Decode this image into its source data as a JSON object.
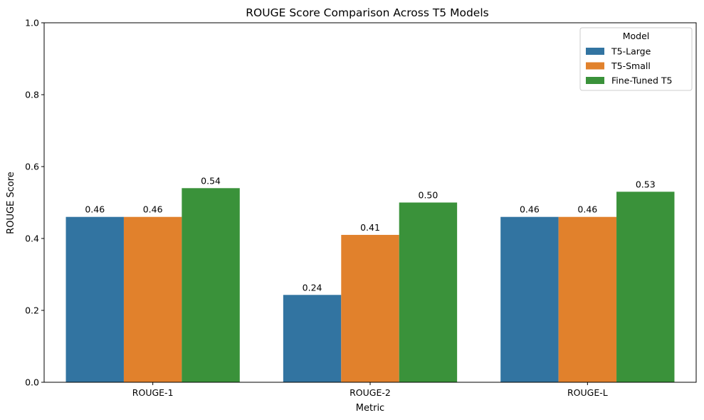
{
  "chart_data": {
    "type": "bar",
    "title": "ROUGE Score Comparison Across T5 Models",
    "xlabel": "Metric",
    "ylabel": "ROUGE Score",
    "ylim": [
      0,
      1.0
    ],
    "yticks": [
      "0.0",
      "0.2",
      "0.4",
      "0.6",
      "0.8",
      "1.0"
    ],
    "categories": [
      "ROUGE-1",
      "ROUGE-2",
      "ROUGE-L"
    ],
    "series": [
      {
        "name": "T5-Large",
        "color": "#3274a1",
        "values": [
          0.46,
          0.243,
          0.46
        ],
        "labels": [
          "0.46",
          "0.24",
          "0.46"
        ]
      },
      {
        "name": "T5-Small",
        "color": "#e1812c",
        "values": [
          0.46,
          0.41,
          0.46
        ],
        "labels": [
          "0.46",
          "0.41",
          "0.46"
        ]
      },
      {
        "name": "Fine-Tuned T5",
        "color": "#3a923a",
        "values": [
          0.54,
          0.5,
          0.53
        ],
        "labels": [
          "0.54",
          "0.50",
          "0.53"
        ]
      }
    ],
    "grid": false,
    "legend": {
      "title": "Model",
      "position": "top-right"
    }
  }
}
